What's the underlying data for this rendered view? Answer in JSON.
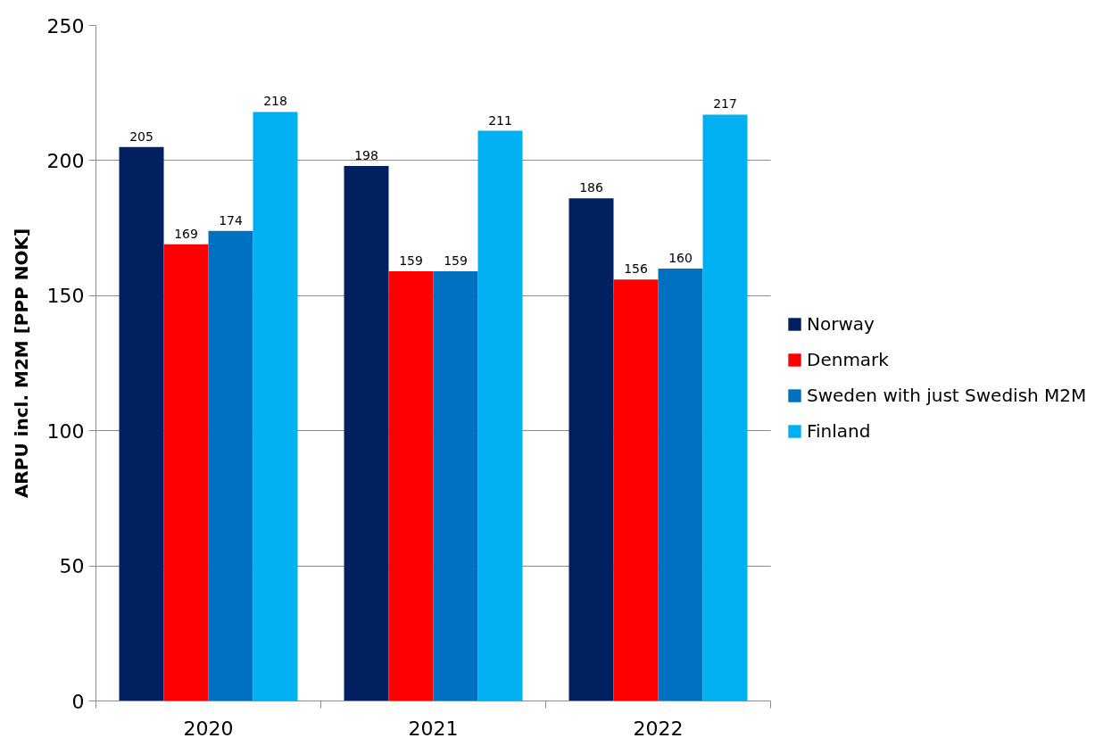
{
  "chart_data": {
    "type": "bar",
    "ylabel": "ARPU incl. M2M [PPP NOK]",
    "categories": [
      "2020",
      "2021",
      "2022"
    ],
    "series": [
      {
        "name": "Norway",
        "color": "#002060",
        "values": [
          205,
          198,
          186
        ]
      },
      {
        "name": "Denmark",
        "color": "#ff0000",
        "values": [
          169,
          159,
          156
        ]
      },
      {
        "name": "Sweden with just Swedish M2M",
        "color": "#0070c0",
        "values": [
          174,
          159,
          160
        ]
      },
      {
        "name": "Finland",
        "color": "#00b0f0",
        "values": [
          218,
          211,
          217
        ]
      }
    ],
    "ylim": [
      0,
      250
    ],
    "yticks": [
      0,
      50,
      100,
      150,
      200,
      250
    ],
    "grid": "y",
    "legend": "right",
    "data_labels": true
  }
}
